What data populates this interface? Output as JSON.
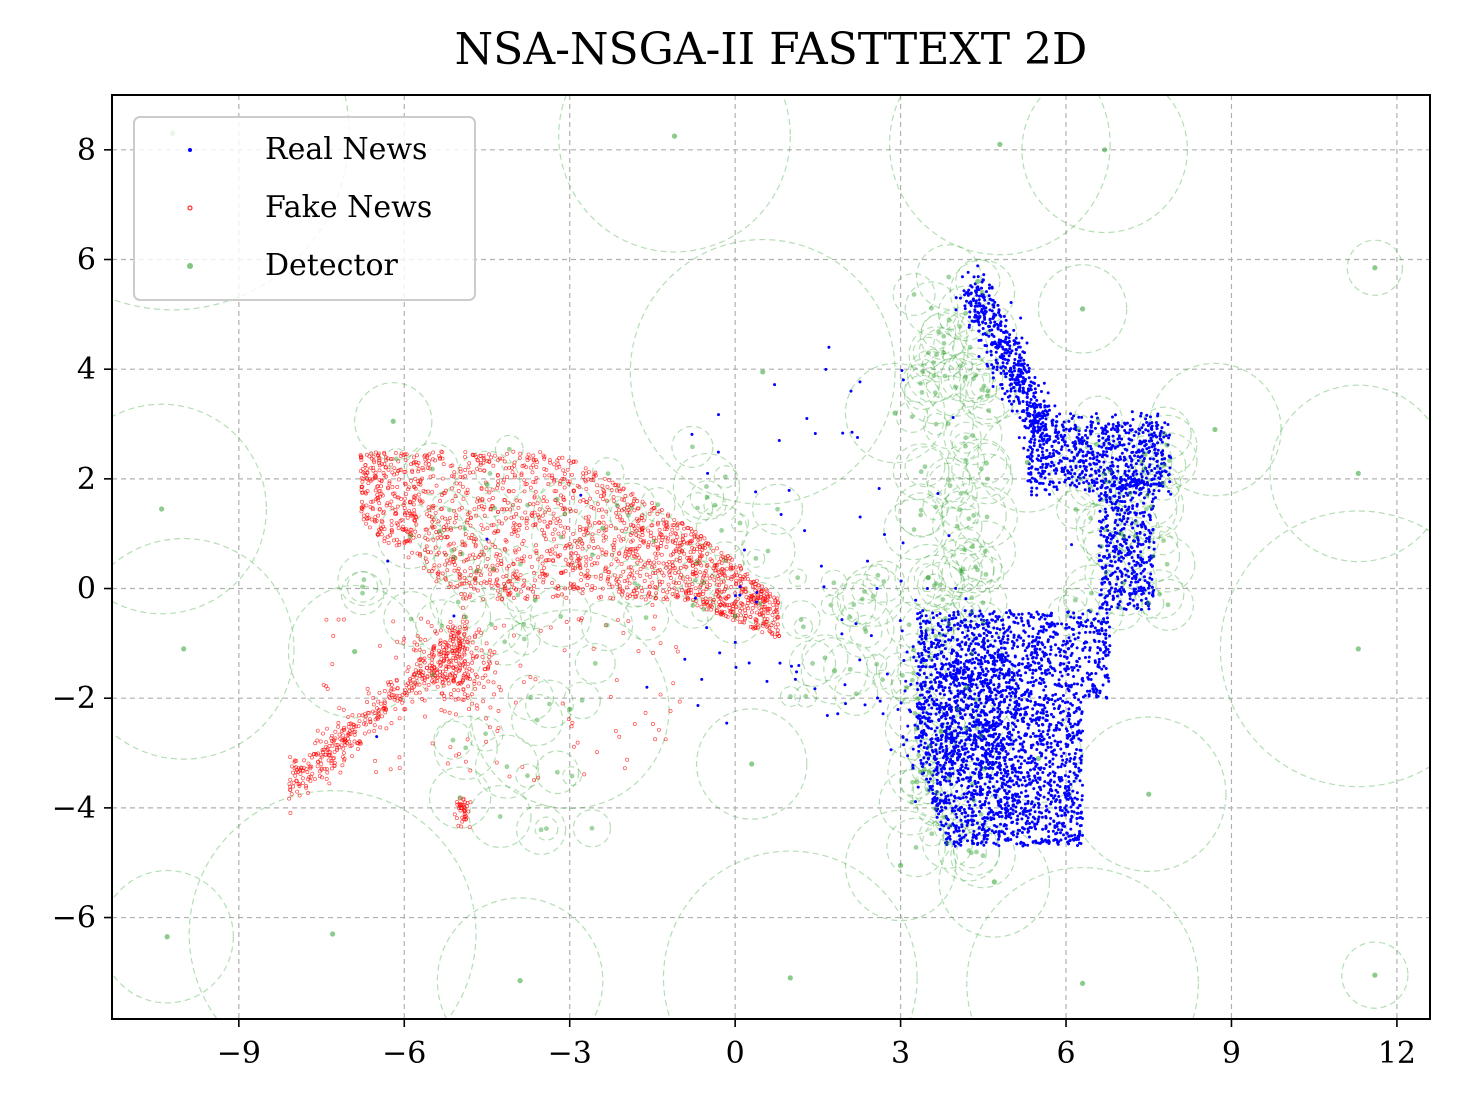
{
  "chart_data": {
    "type": "scatter",
    "title": "NSA-NSGA-II FASTTEXT 2D",
    "xlabel": "",
    "ylabel": "",
    "xlim": [
      -11.3,
      12.6
    ],
    "ylim": [
      -7.85,
      9.0
    ],
    "x_ticks": [
      -9,
      -6,
      -3,
      0,
      3,
      6,
      9,
      12
    ],
    "x_tick_labels": [
      "−9",
      "−6",
      "−3",
      "0",
      "3",
      "6",
      "9",
      "12"
    ],
    "y_ticks": [
      8,
      6,
      4,
      2,
      0,
      -2,
      -4,
      -6
    ],
    "y_tick_labels": [
      "8",
      "6",
      "4",
      "2",
      "0",
      "−2",
      "−4",
      "−6"
    ],
    "grid": true,
    "legend_position": "top-left",
    "series": [
      {
        "name": "Real News",
        "color": "#0000ff",
        "marker": "dot",
        "clusters": [
          {
            "region": "upper-right arm",
            "x_range": [
              4.2,
              7.9
            ],
            "y_range": [
              -0.5,
              5.6
            ]
          },
          {
            "region": "lower-right block",
            "x_range": [
              3.2,
              6.8
            ],
            "y_range": [
              -4.8,
              -0.3
            ]
          },
          {
            "region": "scattered middle",
            "x_range": [
              -6.6,
              3.0
            ],
            "y_range": [
              -3.0,
              4.4
            ]
          }
        ],
        "sample_points": [
          [
            4.4,
            5.5
          ],
          [
            4.6,
            4.6
          ],
          [
            5.0,
            3.6
          ],
          [
            5.6,
            2.9
          ],
          [
            6.4,
            2.6
          ],
          [
            7.3,
            2.5
          ],
          [
            7.6,
            2.0
          ],
          [
            7.2,
            1.2
          ],
          [
            7.0,
            0.3
          ],
          [
            6.8,
            1.0
          ],
          [
            6.1,
            0.8
          ],
          [
            5.3,
            2.4
          ],
          [
            3.6,
            -1.0
          ],
          [
            4.0,
            -1.6
          ],
          [
            4.3,
            -2.5
          ],
          [
            4.9,
            -3.2
          ],
          [
            5.6,
            -3.6
          ],
          [
            6.2,
            -4.1
          ],
          [
            3.5,
            -3.0
          ],
          [
            4.6,
            -0.8
          ],
          [
            5.8,
            -1.5
          ],
          [
            6.3,
            -2.6
          ],
          [
            5.2,
            -4.2
          ],
          [
            1.7,
            4.4
          ],
          [
            2.1,
            3.6
          ],
          [
            1.3,
            3.1
          ],
          [
            0.8,
            2.7
          ],
          [
            -0.5,
            2.1
          ],
          [
            -2.8,
            1.7
          ],
          [
            -4.5,
            0.9
          ],
          [
            -6.3,
            0.5
          ],
          [
            -6.5,
            -2.7
          ],
          [
            -5.1,
            -0.5
          ],
          [
            -1.6,
            -1.8
          ],
          [
            2.4,
            0.5
          ]
        ]
      },
      {
        "name": "Fake News",
        "color": "#ff0000",
        "marker": "small hollow dot",
        "clusters": [
          {
            "region": "main blob",
            "x_range": [
              -6.9,
              0.8
            ],
            "y_range": [
              -1.0,
              2.7
            ]
          },
          {
            "region": "tail",
            "x_range": [
              -8.3,
              -5.0
            ],
            "y_range": [
              -4.0,
              -0.8
            ]
          },
          {
            "region": "small cluster",
            "x_range": [
              -5.1,
              -4.8
            ],
            "y_range": [
              -4.3,
              -3.8
            ]
          }
        ],
        "sample_points": [
          [
            -6.6,
            2.2
          ],
          [
            -5.8,
            2.0
          ],
          [
            -4.9,
            2.4
          ],
          [
            -4.0,
            2.3
          ],
          [
            -3.1,
            2.0
          ],
          [
            -2.2,
            1.6
          ],
          [
            -1.4,
            1.2
          ],
          [
            -0.6,
            0.6
          ],
          [
            0.3,
            0.1
          ],
          [
            -5.5,
            1.3
          ],
          [
            -4.4,
            0.8
          ],
          [
            -3.3,
            0.5
          ],
          [
            -2.4,
            0.0
          ],
          [
            -1.5,
            -0.3
          ],
          [
            -5.0,
            -1.2
          ],
          [
            -5.3,
            -1.7
          ],
          [
            -6.0,
            -2.2
          ],
          [
            -6.8,
            -2.8
          ],
          [
            -7.5,
            -3.3
          ],
          [
            -7.9,
            -3.6
          ],
          [
            -4.9,
            -4.0
          ],
          [
            -4.95,
            -4.25
          ],
          [
            -6.2,
            -0.6
          ],
          [
            -3.9,
            1.6
          ]
        ]
      },
      {
        "name": "Detector",
        "color": "#2ca02c",
        "marker": "dot with dashed radius circle",
        "sample_points": [
          {
            "x": -10.4,
            "y": 1.45,
            "r": 1.9
          },
          {
            "x": -10.2,
            "y": 8.3,
            "r": 3.2
          },
          {
            "x": -10.3,
            "y": -6.35,
            "r": 1.2
          },
          {
            "x": -10.0,
            "y": -1.1,
            "r": 2.0
          },
          {
            "x": -6.2,
            "y": 3.05,
            "r": 0.7
          },
          {
            "x": -6.9,
            "y": -1.15,
            "r": 1.2
          },
          {
            "x": -7.3,
            "y": -6.3,
            "r": 2.6
          },
          {
            "x": -3.0,
            "y": -2.2,
            "r": 1.8
          },
          {
            "x": -3.9,
            "y": -7.15,
            "r": 1.5
          },
          {
            "x": -1.1,
            "y": 8.25,
            "r": 2.1
          },
          {
            "x": 0.5,
            "y": 3.95,
            "r": 2.4
          },
          {
            "x": 0.3,
            "y": -3.2,
            "r": 1.0
          },
          {
            "x": 1.0,
            "y": -7.1,
            "r": 2.3
          },
          {
            "x": 2.9,
            "y": 3.2,
            "r": 0.9
          },
          {
            "x": 4.8,
            "y": 8.1,
            "r": 2.0
          },
          {
            "x": 6.7,
            "y": 8.0,
            "r": 1.5
          },
          {
            "x": 6.3,
            "y": 5.1,
            "r": 0.8
          },
          {
            "x": 8.7,
            "y": 2.9,
            "r": 1.2
          },
          {
            "x": 11.3,
            "y": 2.1,
            "r": 1.6
          },
          {
            "x": 11.3,
            "y": -1.1,
            "r": 2.5
          },
          {
            "x": 11.6,
            "y": 5.85,
            "r": 0.5
          },
          {
            "x": 11.6,
            "y": -7.05,
            "r": 0.6
          },
          {
            "x": 3.0,
            "y": -5.05,
            "r": 1.0
          },
          {
            "x": 4.7,
            "y": -5.35,
            "r": 1.0
          },
          {
            "x": 6.3,
            "y": -7.2,
            "r": 2.1
          },
          {
            "x": 7.5,
            "y": -3.75,
            "r": 1.4
          },
          {
            "x": 4.4,
            "y": 5.6,
            "r": 0.4
          },
          {
            "x": 5.3,
            "y": 2.3,
            "r": 0.9
          },
          {
            "x": 7.0,
            "y": 1.0,
            "r": 0.7
          },
          {
            "x": 4.2,
            "y": -1.8,
            "r": 0.9
          },
          {
            "x": 5.5,
            "y": -3.1,
            "r": 0.8
          },
          {
            "x": 3.5,
            "y": 0.2,
            "r": 0.6
          },
          {
            "x": -4.5,
            "y": 1.9,
            "r": 0.6
          },
          {
            "x": -2.4,
            "y": 1.1,
            "r": 0.5
          },
          {
            "x": 0.0,
            "y": -0.5,
            "r": 0.5
          },
          {
            "x": 1.8,
            "y": -1.5,
            "r": 0.6
          }
        ]
      }
    ]
  }
}
